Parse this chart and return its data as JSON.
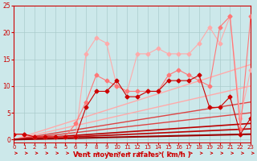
{
  "xlabel": "Vent moyen/en rafales ( km/h )",
  "bg_color": "#cce8ea",
  "grid_color": "#aacccc",
  "xmin": 0,
  "xmax": 23,
  "ymin": -0.5,
  "ymax": 25,
  "yticks": [
    0,
    5,
    10,
    15,
    20,
    25
  ],
  "xticks": [
    0,
    1,
    2,
    3,
    4,
    5,
    6,
    7,
    8,
    9,
    10,
    11,
    12,
    13,
    14,
    15,
    16,
    17,
    18,
    19,
    20,
    21,
    22,
    23
  ],
  "straight_lines": [
    {
      "x0": 0,
      "y0": 0,
      "x1": 23,
      "y1": 14,
      "color": "#ffaaaa",
      "lw": 1.0
    },
    {
      "x0": 0,
      "y0": 0,
      "x1": 23,
      "y1": 10,
      "color": "#ffaaaa",
      "lw": 1.0
    },
    {
      "x0": 0,
      "y0": 0,
      "x1": 23,
      "y1": 7,
      "color": "#dd4444",
      "lw": 1.0
    },
    {
      "x0": 0,
      "y0": 0,
      "x1": 23,
      "y1": 5,
      "color": "#dd4444",
      "lw": 1.0
    },
    {
      "x0": 0,
      "y0": 0,
      "x1": 23,
      "y1": 3,
      "color": "#bb0000",
      "lw": 1.2
    },
    {
      "x0": 0,
      "y0": 0,
      "x1": 23,
      "y1": 2,
      "color": "#bb0000",
      "lw": 1.2
    },
    {
      "x0": 0,
      "y0": 0,
      "x1": 23,
      "y1": 1,
      "color": "#990000",
      "lw": 1.5
    }
  ],
  "scatter_lines": [
    {
      "x": [
        0,
        1,
        2,
        3,
        4,
        5,
        6,
        7,
        8,
        9,
        10,
        11,
        12,
        13,
        14,
        15,
        16,
        17,
        18,
        19,
        20,
        21,
        22,
        23
      ],
      "y": [
        1,
        1,
        0.5,
        0.5,
        0.5,
        0.5,
        0.5,
        16,
        19,
        18,
        10,
        9,
        16,
        16,
        17,
        16,
        16,
        16,
        18,
        21,
        18,
        23,
        4,
        13
      ],
      "color": "#ffaaaa",
      "lw": 0.8,
      "marker": "D",
      "ms": 2.5
    },
    {
      "x": [
        0,
        1,
        2,
        3,
        4,
        5,
        6,
        7,
        8,
        9,
        10,
        11,
        12,
        13,
        14,
        15,
        16,
        17,
        18,
        19,
        20,
        21,
        22,
        23
      ],
      "y": [
        1,
        1,
        0.5,
        0.5,
        0.5,
        0.5,
        3,
        7,
        12,
        11,
        10,
        9,
        9,
        9,
        9,
        12,
        13,
        12,
        11,
        10,
        21,
        23,
        2,
        23
      ],
      "color": "#ff7777",
      "lw": 0.8,
      "marker": "D",
      "ms": 2.5
    },
    {
      "x": [
        0,
        1,
        2,
        3,
        4,
        5,
        6,
        7,
        8,
        9,
        10,
        11,
        12,
        13,
        14,
        15,
        16,
        17,
        18,
        19,
        20,
        21,
        22,
        23
      ],
      "y": [
        1,
        1,
        0.5,
        0.5,
        0.5,
        0.5,
        0.5,
        6,
        9,
        9,
        11,
        8,
        8,
        9,
        9,
        11,
        11,
        11,
        12,
        6,
        6,
        8,
        1,
        4
      ],
      "color": "#cc0000",
      "lw": 0.8,
      "marker": "D",
      "ms": 2.5
    }
  ],
  "arrow_color": "#cc0000",
  "tick_color": "#cc0000",
  "label_color": "#cc0000",
  "spine_color": "#cc0000"
}
